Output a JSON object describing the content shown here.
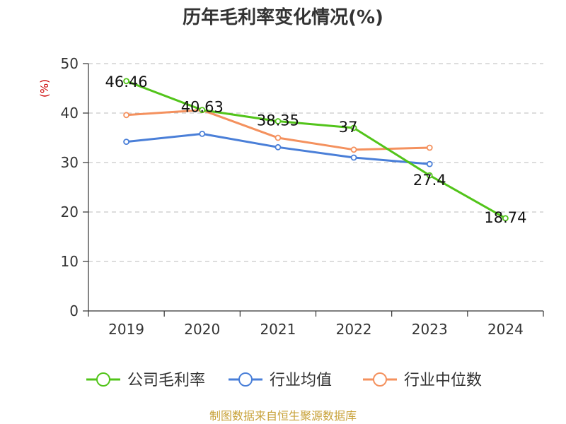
{
  "chart_data": {
    "type": "line",
    "title": "历年毛利率变化情况(%)",
    "ylabel": "(%)",
    "xlabel": "",
    "categories": [
      "2019",
      "2020",
      "2021",
      "2022",
      "2023",
      "2024"
    ],
    "ylim": [
      0,
      50
    ],
    "yticks": [
      0,
      10,
      20,
      30,
      40,
      50
    ],
    "grid": true,
    "legend_position": "bottom",
    "series": [
      {
        "name": "公司毛利率",
        "color": "#52c41a",
        "values": [
          46.46,
          40.63,
          38.35,
          37,
          27.4,
          18.74
        ],
        "labels": [
          "46.46",
          "40.63",
          "38.35",
          "37",
          "27.4",
          "18.74"
        ]
      },
      {
        "name": "行业均值",
        "color": "#4a7fd8",
        "values": [
          34.2,
          35.8,
          33.1,
          31.0,
          29.7,
          null
        ]
      },
      {
        "name": "行业中位数",
        "color": "#f4915e",
        "values": [
          39.6,
          40.6,
          35.0,
          32.6,
          33.0,
          null
        ]
      }
    ]
  },
  "source": "制图数据来自恒生聚源数据库"
}
